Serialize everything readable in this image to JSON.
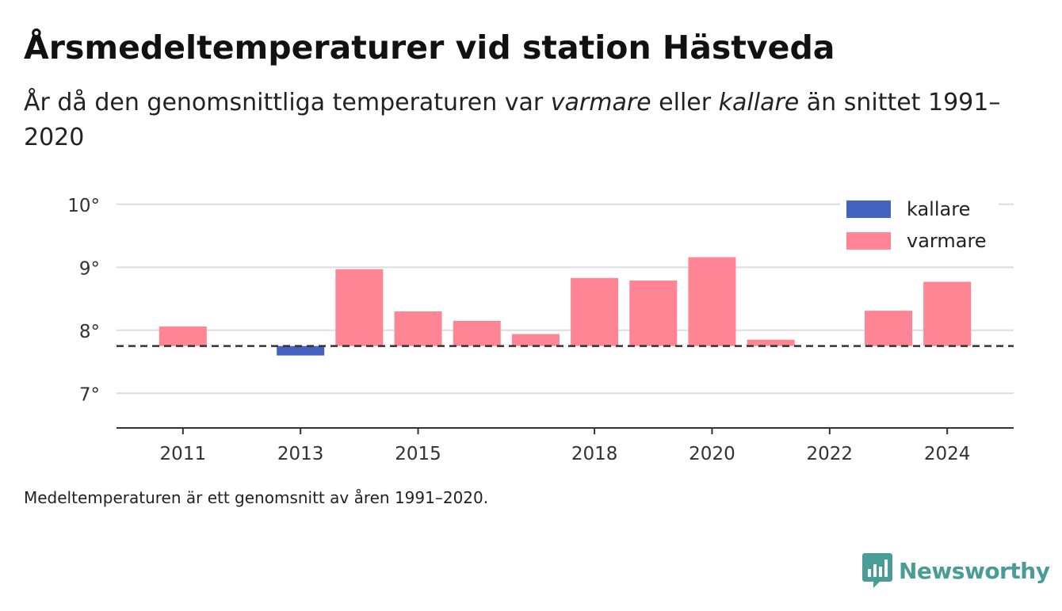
{
  "title": "Årsmedeltemperaturer vid station Hästveda",
  "subtitle": {
    "p1": "År då den genomsnittliga temperaturen var ",
    "warm": "varmare",
    "p2": " eller ",
    "cold": "kallare",
    "p3": " än snittet 1991–2020"
  },
  "note": "Medeltemperaturen är ett genomsnitt av åren 1991–2020.",
  "brand": {
    "name": "Newsworthy",
    "color": "#4a9c97",
    "icon": "bar-chart-icon"
  },
  "colors": {
    "warm": "#ff8494",
    "cold": "#4262be",
    "baseline": "#333333",
    "grid": "#dddddd"
  },
  "chart_data": {
    "type": "bar",
    "baseline": 7.75,
    "ylim": [
      6.45,
      10.4
    ],
    "y_ticks": [
      7,
      8,
      9,
      10
    ],
    "y_tick_suffix": "°",
    "x_range": [
      2009.87,
      2025.13
    ],
    "x_ticks": [
      2011,
      2013,
      2015,
      2018,
      2020,
      2022,
      2024
    ],
    "legend": [
      {
        "label": "kallare",
        "color": "#4262be"
      },
      {
        "label": "varmare",
        "color": "#ff8494"
      }
    ],
    "legend_position": "top-right",
    "grid": true,
    "series": [
      {
        "year": 2011,
        "value": 8.06
      },
      {
        "year": 2013,
        "value": 7.6
      },
      {
        "year": 2014,
        "value": 8.97
      },
      {
        "year": 2015,
        "value": 8.3
      },
      {
        "year": 2016,
        "value": 8.15
      },
      {
        "year": 2017,
        "value": 7.94
      },
      {
        "year": 2018,
        "value": 8.83
      },
      {
        "year": 2019,
        "value": 8.79
      },
      {
        "year": 2020,
        "value": 9.16
      },
      {
        "year": 2021,
        "value": 7.85
      },
      {
        "year": 2023,
        "value": 8.31
      },
      {
        "year": 2024,
        "value": 8.77
      }
    ]
  }
}
